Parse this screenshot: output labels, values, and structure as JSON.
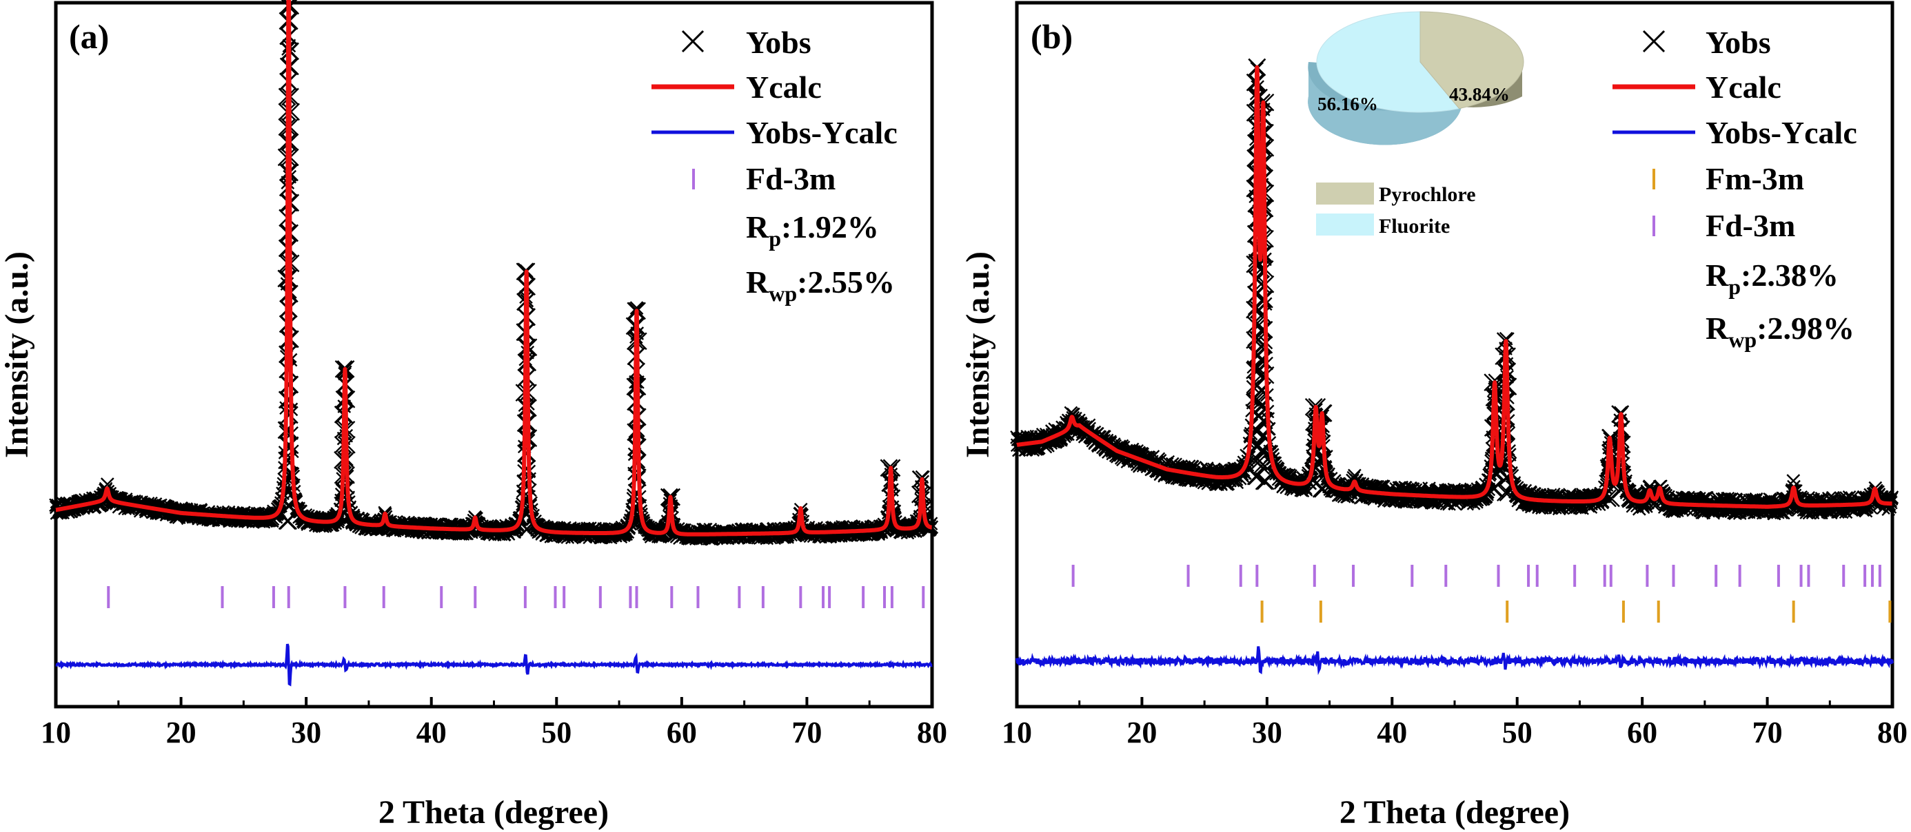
{
  "chart_data": [
    {
      "type": "line",
      "panel_label": "(a)",
      "xlabel": "2 Theta (degree)",
      "ylabel": "Intensity (a.u.)",
      "xlim": [
        10,
        80
      ],
      "xticks": [
        10,
        20,
        30,
        40,
        50,
        60,
        70,
        80
      ],
      "grid": false,
      "legend_position": "top-right",
      "legend": [
        {
          "marker": "x",
          "label": "Yobs"
        },
        {
          "marker": "line",
          "label": "Ycalc"
        },
        {
          "marker": "line",
          "label": "Yobs-Ycalc"
        },
        {
          "marker": "bar",
          "label": "Fd-3m"
        }
      ],
      "r_factors": [
        {
          "symbol": "R",
          "sub": "p",
          "value": ":1.92%"
        },
        {
          "symbol": "R",
          "sub": "wp",
          "value": ":2.55%"
        }
      ],
      "baseline_points": [
        [
          10,
          0.075
        ],
        [
          14,
          0.09
        ],
        [
          20,
          0.07
        ],
        [
          30,
          0.055
        ],
        [
          40,
          0.045
        ],
        [
          50,
          0.038
        ],
        [
          60,
          0.035
        ],
        [
          70,
          0.038
        ],
        [
          80,
          0.045
        ]
      ],
      "peaks": [
        {
          "x": 14.1,
          "height": 0.02,
          "width": 0.25
        },
        {
          "x": 28.6,
          "height": 0.88,
          "width": 0.18
        },
        {
          "x": 33.1,
          "height": 0.25,
          "width": 0.2
        },
        {
          "x": 36.3,
          "height": 0.02,
          "width": 0.2
        },
        {
          "x": 43.5,
          "height": 0.02,
          "width": 0.2
        },
        {
          "x": 47.6,
          "height": 0.42,
          "width": 0.2
        },
        {
          "x": 56.4,
          "height": 0.36,
          "width": 0.2
        },
        {
          "x": 59.1,
          "height": 0.06,
          "width": 0.2
        },
        {
          "x": 69.5,
          "height": 0.04,
          "width": 0.2
        },
        {
          "x": 76.7,
          "height": 0.1,
          "width": 0.2
        },
        {
          "x": 79.2,
          "height": 0.08,
          "width": 0.2
        }
      ],
      "diff_spikes": [
        {
          "x": 28.6,
          "amp": 0.05
        },
        {
          "x": 33.1,
          "amp": 0.015
        },
        {
          "x": 47.6,
          "amp": 0.022
        },
        {
          "x": 56.4,
          "amp": 0.018
        }
      ],
      "reflections": [
        {
          "phase": "Fd-3m",
          "color": "#b06ee0",
          "positions": [
            14.2,
            23.3,
            27.4,
            28.6,
            33.1,
            36.2,
            40.8,
            43.5,
            47.5,
            49.9,
            50.6,
            53.5,
            55.9,
            56.4,
            59.2,
            61.3,
            64.6,
            66.5,
            69.5,
            71.3,
            71.8,
            74.5,
            76.2,
            76.8,
            79.3
          ]
        }
      ]
    },
    {
      "type": "line",
      "panel_label": "(b)",
      "xlabel": "2 Theta (degree)",
      "ylabel": "Intensity (a.u.)",
      "xlim": [
        10,
        80
      ],
      "xticks": [
        10,
        20,
        30,
        40,
        50,
        60,
        70,
        80
      ],
      "grid": false,
      "legend_position": "top-right",
      "legend": [
        {
          "marker": "x",
          "label": "Yobs"
        },
        {
          "marker": "line",
          "label": "Ycalc"
        },
        {
          "marker": "line",
          "label": "Yobs-Ycalc"
        },
        {
          "marker": "bar",
          "label": "Fm-3m"
        },
        {
          "marker": "bar",
          "label": "Fd-3m"
        }
      ],
      "r_factors": [
        {
          "symbol": "R",
          "sub": "p",
          "value": ":2.38%"
        },
        {
          "symbol": "R",
          "sub": "wp",
          "value": ":2.98%"
        }
      ],
      "baseline_points": [
        [
          10,
          0.18
        ],
        [
          12,
          0.185
        ],
        [
          15,
          0.21
        ],
        [
          18,
          0.17
        ],
        [
          22,
          0.14
        ],
        [
          26,
          0.125
        ],
        [
          30,
          0.115
        ],
        [
          40,
          0.1
        ],
        [
          50,
          0.09
        ],
        [
          60,
          0.085
        ],
        [
          70,
          0.08
        ],
        [
          80,
          0.085
        ]
      ],
      "peaks": [
        {
          "x": 14.4,
          "height": 0.02,
          "width": 0.3
        },
        {
          "x": 29.2,
          "height": 0.62,
          "width": 0.3
        },
        {
          "x": 29.7,
          "height": 0.55,
          "width": 0.28
        },
        {
          "x": 33.9,
          "height": 0.12,
          "width": 0.28
        },
        {
          "x": 34.4,
          "height": 0.11,
          "width": 0.28
        },
        {
          "x": 37.0,
          "height": 0.015,
          "width": 0.3
        },
        {
          "x": 48.2,
          "height": 0.18,
          "width": 0.3
        },
        {
          "x": 49.1,
          "height": 0.25,
          "width": 0.3
        },
        {
          "x": 57.4,
          "height": 0.1,
          "width": 0.3
        },
        {
          "x": 58.3,
          "height": 0.14,
          "width": 0.3
        },
        {
          "x": 60.6,
          "height": 0.02,
          "width": 0.3
        },
        {
          "x": 61.4,
          "height": 0.025,
          "width": 0.3
        },
        {
          "x": 72.1,
          "height": 0.03,
          "width": 0.3
        },
        {
          "x": 78.6,
          "height": 0.025,
          "width": 0.3
        }
      ],
      "diff_spikes": [
        {
          "x": 29.4,
          "amp": 0.03
        },
        {
          "x": 34.1,
          "amp": 0.02
        },
        {
          "x": 49.0,
          "amp": 0.015
        },
        {
          "x": 58.2,
          "amp": 0.015
        }
      ],
      "reflections": [
        {
          "phase": "Fd-3m",
          "color": "#b06ee0",
          "positions": [
            14.5,
            23.7,
            27.9,
            29.2,
            33.8,
            36.9,
            41.6,
            44.3,
            48.5,
            50.9,
            51.6,
            54.6,
            57.0,
            57.5,
            60.4,
            62.5,
            65.9,
            67.8,
            70.9,
            72.7,
            73.3,
            76.1,
            77.8,
            78.4,
            79.0
          ]
        },
        {
          "phase": "Fm-3m",
          "color": "#e0a020",
          "positions": [
            29.6,
            34.3,
            49.2,
            58.5,
            61.3,
            72.1,
            79.8
          ]
        }
      ],
      "inset_pie": {
        "slices": [
          {
            "label": "Pyrochlore",
            "value": 43.84,
            "text": "43.84%",
            "color": "#cfcfb0"
          },
          {
            "label": "Fluorite",
            "value": 56.16,
            "text": "56.16%",
            "color": "#c8f3fb"
          }
        ]
      }
    }
  ]
}
